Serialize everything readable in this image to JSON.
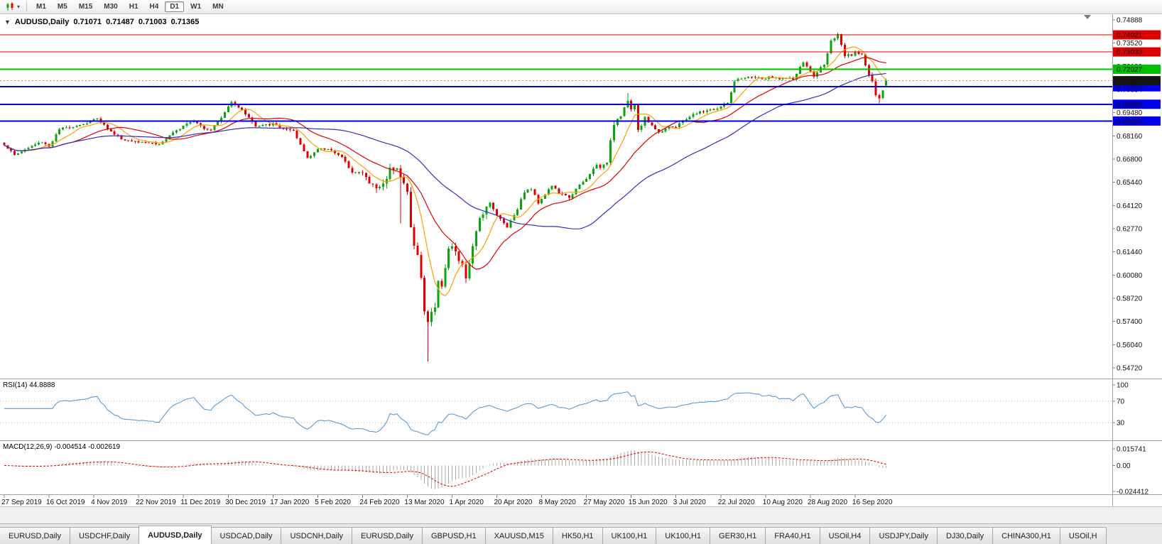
{
  "toolbar": {
    "timeframes": [
      "M1",
      "M5",
      "M15",
      "M30",
      "H1",
      "H4",
      "D1",
      "W1",
      "MN"
    ],
    "active_timeframe": "D1"
  },
  "chart": {
    "symbol_title": "AUDUSD,Daily",
    "ohlc": {
      "open": "0.71071",
      "high": "0.71487",
      "low": "0.71003",
      "close": "0.71365"
    },
    "colors": {
      "up": "#0DA50D",
      "down": "#DE0000",
      "bid_box": "#141414"
    }
  },
  "chart_data": {
    "type": "candlestick",
    "symbol": "AUDUSD",
    "period": "Daily",
    "num_bars": 257,
    "bars_per_x_label": 13,
    "x_labels": [
      "27 Sep 2019",
      "16 Oct 2019",
      "4 Nov 2019",
      "22 Nov 2019",
      "11 Dec 2019",
      "30 Dec 2019",
      "17 Jan 2020",
      "5 Feb 2020",
      "24 Feb 2020",
      "13 Mar 2020",
      "1 Apr 2020",
      "20 Apr 2020",
      "8 May 2020",
      "27 May 2020",
      "15 Jun 2020",
      "3 Jul 2020",
      "22 Jul 2020",
      "10 Aug 2020",
      "28 Aug 2020",
      "16 Sep 2020"
    ],
    "y_axis": {
      "max": 0.74888,
      "min": 0.5472,
      "labels": [
        "0.74888",
        "0.73520",
        "0.72199",
        "0.70854",
        "0.69480",
        "0.68160",
        "0.66800",
        "0.65440",
        "0.64120",
        "0.62770",
        "0.61440",
        "0.60080",
        "0.58720",
        "0.57400",
        "0.56040",
        "0.54720"
      ]
    },
    "close_anchors": [
      [
        0,
        0.6766
      ],
      [
        3,
        0.6705
      ],
      [
        8,
        0.6758
      ],
      [
        11,
        0.6782
      ],
      [
        13,
        0.6755
      ],
      [
        16,
        0.6855
      ],
      [
        20,
        0.6872
      ],
      [
        24,
        0.689
      ],
      [
        27,
        0.692
      ],
      [
        31,
        0.684
      ],
      [
        35,
        0.679
      ],
      [
        40,
        0.6785
      ],
      [
        45,
        0.6768
      ],
      [
        49,
        0.683
      ],
      [
        52,
        0.688
      ],
      [
        55,
        0.691
      ],
      [
        58,
        0.686
      ],
      [
        60,
        0.6855
      ],
      [
        63,
        0.692
      ],
      [
        66,
        0.702
      ],
      [
        68,
        0.6983
      ],
      [
        71,
        0.6925
      ],
      [
        73,
        0.687
      ],
      [
        78,
        0.6885
      ],
      [
        81,
        0.6858
      ],
      [
        84,
        0.684
      ],
      [
        88,
        0.669
      ],
      [
        91,
        0.674
      ],
      [
        95,
        0.6738
      ],
      [
        98,
        0.669
      ],
      [
        101,
        0.661
      ],
      [
        104,
        0.66
      ],
      [
        106,
        0.6545
      ],
      [
        108,
        0.6515
      ],
      [
        110,
        0.6535
      ],
      [
        112,
        0.6625
      ],
      [
        114,
        0.664
      ],
      [
        115,
        0.658
      ],
      [
        116,
        0.6535
      ],
      [
        117,
        0.649
      ],
      [
        118,
        0.6285
      ],
      [
        119,
        0.619
      ],
      [
        120,
        0.612
      ],
      [
        121,
        0.5995
      ],
      [
        122,
        0.579
      ],
      [
        123,
        0.5745
      ],
      [
        124,
        0.58
      ],
      [
        125,
        0.5825
      ],
      [
        126,
        0.5965
      ],
      [
        127,
        0.5955
      ],
      [
        128,
        0.606
      ],
      [
        129,
        0.6165
      ],
      [
        130,
        0.617
      ],
      [
        131,
        0.6135
      ],
      [
        132,
        0.6095
      ],
      [
        133,
        0.606
      ],
      [
        134,
        0.5995
      ],
      [
        136,
        0.6165
      ],
      [
        138,
        0.6345
      ],
      [
        141,
        0.6435
      ],
      [
        143,
        0.6355
      ],
      [
        146,
        0.629
      ],
      [
        149,
        0.6395
      ],
      [
        151,
        0.6495
      ],
      [
        153,
        0.651
      ],
      [
        155,
        0.643
      ],
      [
        159,
        0.653
      ],
      [
        161,
        0.6485
      ],
      [
        164,
        0.646
      ],
      [
        167,
        0.653
      ],
      [
        169,
        0.6565
      ],
      [
        172,
        0.6655
      ],
      [
        173,
        0.6625
      ],
      [
        175,
        0.6665
      ],
      [
        176,
        0.6795
      ],
      [
        177,
        0.689
      ],
      [
        179,
        0.694
      ],
      [
        181,
        0.702
      ],
      [
        182,
        0.696
      ],
      [
        183,
        0.7
      ],
      [
        184,
        0.685
      ],
      [
        186,
        0.692
      ],
      [
        190,
        0.6835
      ],
      [
        193,
        0.6875
      ],
      [
        195,
        0.6865
      ],
      [
        197,
        0.6905
      ],
      [
        200,
        0.694
      ],
      [
        204,
        0.6965
      ],
      [
        207,
        0.6975
      ],
      [
        210,
        0.701
      ],
      [
        212,
        0.713
      ],
      [
        213,
        0.714
      ],
      [
        217,
        0.716
      ],
      [
        220,
        0.7145
      ],
      [
        222,
        0.7155
      ],
      [
        226,
        0.715
      ],
      [
        229,
        0.7145
      ],
      [
        232,
        0.7245
      ],
      [
        235,
        0.716
      ],
      [
        238,
        0.7235
      ],
      [
        240,
        0.7365
      ],
      [
        241,
        0.7375
      ],
      [
        242,
        0.7405
      ],
      [
        243,
        0.734
      ],
      [
        244,
        0.728
      ],
      [
        246,
        0.7285
      ],
      [
        247,
        0.7305
      ],
      [
        249,
        0.729
      ],
      [
        250,
        0.7225
      ],
      [
        251,
        0.717
      ],
      [
        252,
        0.7125
      ],
      [
        253,
        0.7055
      ],
      [
        254,
        0.703
      ],
      [
        255,
        0.7075
      ],
      [
        256,
        0.71365
      ]
    ],
    "candle_overrides": [
      {
        "i": 115,
        "low": 0.631
      },
      {
        "i": 123,
        "low": 0.551
      },
      {
        "i": 181,
        "high": 0.7065
      },
      {
        "i": 242,
        "high": 0.7414
      },
      {
        "i": 254,
        "low": 0.7006
      },
      {
        "i": 256,
        "open": 0.71071,
        "high": 0.71487,
        "low": 0.71003,
        "close": 0.71365
      }
    ],
    "moving_averages": [
      {
        "period": 8,
        "color": "#FFA000",
        "name": "ma-fast-line"
      },
      {
        "period": 20,
        "color": "#E00000",
        "name": "ma-mid-line"
      },
      {
        "period": 50,
        "color": "#3030C0",
        "name": "ma-slow-line"
      }
    ],
    "horizontal_lines": [
      {
        "price": 0.74021,
        "label": "0.74021",
        "color": "#E00000",
        "width": 1
      },
      {
        "price": 0.73033,
        "label": "0.73033",
        "color": "#E00000",
        "width": 1
      },
      {
        "price": 0.72027,
        "label": "0.72027",
        "color": "#00C000",
        "width": 2
      },
      {
        "price": 0.7101,
        "label": "0.71010",
        "color": "#0000E8",
        "width": 2
      },
      {
        "price": 0.69999,
        "label": "0.69999",
        "color": "#0000E8",
        "width": 2
      },
      {
        "price": 0.69025,
        "label": "0.69025",
        "color": "#0000E8",
        "width": 2
      }
    ],
    "current_price": {
      "value": 0.71365,
      "label": "0.71365"
    },
    "indicators": {
      "rsi": {
        "label": "RSI(14)",
        "value": "44.8888",
        "period": 14,
        "levels": [
          70,
          30
        ],
        "scale_labels": [
          "100",
          "70",
          "30"
        ],
        "color": "#5B9BD5"
      },
      "macd": {
        "label": "MACD(12,26,9)",
        "values": "-0.004514 -0.002619",
        "fast": 12,
        "slow": 26,
        "signal": 9,
        "scale_max": 0.015741,
        "scale_min": -0.024412,
        "scale_labels": [
          "0.015741",
          "0.00",
          "-0.024412"
        ],
        "bar_color": "#ABABAB",
        "signal_color": "#E00000"
      }
    }
  },
  "bottom_tabs": {
    "active_index": 2,
    "tabs": [
      "EURUSD,Daily",
      "USDCHF,Daily",
      "AUDUSD,Daily",
      "USDCAD,Daily",
      "USDCNH,Daily",
      "EURUSD,Daily",
      "GBPUSD,H1",
      "XAUUSD,M15",
      "HK50,H1",
      "UK100,H1",
      "UK100,H1",
      "GER30,H1",
      "FRA40,H1",
      "USOil,H4",
      "USDJPY,Daily",
      "DJ30,Daily",
      "CHINA300,H1",
      "USOil,H"
    ]
  }
}
